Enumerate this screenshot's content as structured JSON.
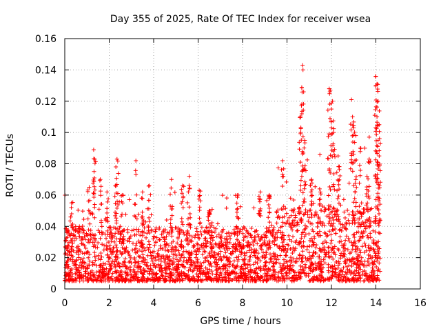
{
  "chart_data": {
    "type": "scatter",
    "title": "Day 355 of 2025, Rate Of TEC Index for receiver wsea",
    "xlabel": "GPS time / hours",
    "ylabel": "ROTI / TECUs",
    "xlim": [
      0,
      16
    ],
    "ylim": [
      0,
      0.16
    ],
    "xticks": [
      "0",
      "2",
      "4",
      "6",
      "8",
      "10",
      "12",
      "14",
      "16"
    ],
    "yticks": [
      "0",
      "0.02",
      "0.04",
      "0.06",
      "0.08",
      "0.1",
      "0.12",
      "0.14",
      "0.16"
    ],
    "grid": true,
    "marker": "plus",
    "series_color": "#ff0000",
    "data_extent_hours": [
      0,
      14.2
    ],
    "baseline_band": [
      0.005,
      0.04
    ],
    "highlight_points": [
      {
        "x": 1.3,
        "y": 0.089
      },
      {
        "x": 1.35,
        "y": 0.083
      },
      {
        "x": 2.35,
        "y": 0.083
      },
      {
        "x": 2.3,
        "y": 0.078
      },
      {
        "x": 3.2,
        "y": 0.082
      },
      {
        "x": 4.8,
        "y": 0.07
      },
      {
        "x": 5.6,
        "y": 0.072
      },
      {
        "x": 6.05,
        "y": 0.063
      },
      {
        "x": 7.8,
        "y": 0.06
      },
      {
        "x": 9.8,
        "y": 0.082
      },
      {
        "x": 10.7,
        "y": 0.143
      },
      {
        "x": 10.72,
        "y": 0.14
      },
      {
        "x": 10.75,
        "y": 0.126
      },
      {
        "x": 10.65,
        "y": 0.117
      },
      {
        "x": 10.6,
        "y": 0.11
      },
      {
        "x": 10.8,
        "y": 0.095
      },
      {
        "x": 11.9,
        "y": 0.128
      },
      {
        "x": 11.95,
        "y": 0.127
      },
      {
        "x": 12.05,
        "y": 0.12
      },
      {
        "x": 12.0,
        "y": 0.115
      },
      {
        "x": 12.1,
        "y": 0.1
      },
      {
        "x": 12.3,
        "y": 0.085
      },
      {
        "x": 12.9,
        "y": 0.121
      },
      {
        "x": 12.95,
        "y": 0.11
      },
      {
        "x": 13.0,
        "y": 0.103
      },
      {
        "x": 13.1,
        "y": 0.098
      },
      {
        "x": 13.3,
        "y": 0.09
      },
      {
        "x": 14.0,
        "y": 0.136
      },
      {
        "x": 14.05,
        "y": 0.131
      },
      {
        "x": 14.0,
        "y": 0.13
      },
      {
        "x": 14.1,
        "y": 0.12
      },
      {
        "x": 14.05,
        "y": 0.11
      },
      {
        "x": 14.15,
        "y": 0.105
      },
      {
        "x": 14.1,
        "y": 0.095
      },
      {
        "x": 14.15,
        "y": 0.085
      },
      {
        "x": 13.7,
        "y": 0.083
      },
      {
        "x": 13.6,
        "y": 0.072
      },
      {
        "x": 11.1,
        "y": 0.07
      },
      {
        "x": 11.5,
        "y": 0.062
      },
      {
        "x": 9.2,
        "y": 0.06
      },
      {
        "x": 8.8,
        "y": 0.062
      },
      {
        "x": 0.3,
        "y": 0.055
      },
      {
        "x": 1.1,
        "y": 0.065
      },
      {
        "x": 1.6,
        "y": 0.07
      },
      {
        "x": 1.9,
        "y": 0.062
      },
      {
        "x": 2.6,
        "y": 0.06
      },
      {
        "x": 3.5,
        "y": 0.062
      },
      {
        "x": 3.8,
        "y": 0.066
      },
      {
        "x": 5.3,
        "y": 0.066
      },
      {
        "x": 6.5,
        "y": 0.05
      }
    ]
  }
}
